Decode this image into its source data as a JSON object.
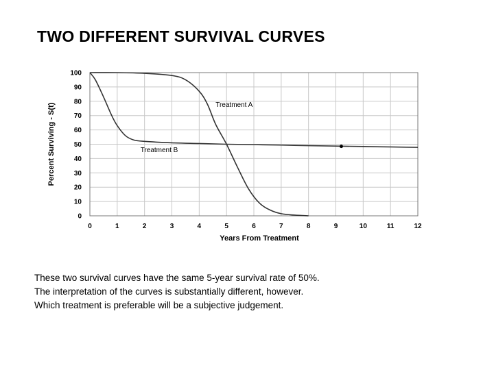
{
  "title": "TWO DIFFERENT SURVIVAL CURVES",
  "chart_data": {
    "type": "line",
    "title": "",
    "xlabel": "Years From Treatment",
    "ylabel": "Percent Surviving - S(t)",
    "xlim": [
      0,
      12
    ],
    "ylim": [
      0,
      100
    ],
    "xticks": [
      "0",
      "1",
      "2",
      "3",
      "4",
      "5",
      "6",
      "7",
      "8",
      "9",
      "10",
      "11",
      "12"
    ],
    "yticks": [
      "0",
      "10",
      "20",
      "30",
      "40",
      "50",
      "60",
      "70",
      "80",
      "90",
      "100"
    ],
    "grid": true,
    "legend": "none",
    "series": [
      {
        "name": "Treatment A",
        "x": [
          0,
          1,
          2,
          3,
          3.5,
          4,
          4.3,
          4.6,
          5,
          5.4,
          5.8,
          6.2,
          6.6,
          7,
          7.5,
          8
        ],
        "y": [
          100,
          100,
          99.5,
          98,
          95,
          87,
          78,
          64,
          50,
          34,
          19,
          9,
          4,
          1.5,
          0.5,
          0
        ]
      },
      {
        "name": "Treatment B",
        "x": [
          0,
          0.2,
          0.5,
          0.8,
          1,
          1.3,
          1.6,
          2,
          3,
          4,
          5,
          6,
          7,
          8,
          9,
          10,
          11,
          12
        ],
        "y": [
          100,
          95,
          83,
          70,
          63,
          56,
          53,
          52,
          51,
          50.5,
          50,
          49.7,
          49.4,
          49,
          48.7,
          48.4,
          48.1,
          47.8
        ]
      }
    ],
    "annotations": [
      {
        "text": "Treatment A",
        "x": 4.6,
        "y": 76
      },
      {
        "text": "Treatment B",
        "x": 1.85,
        "y": 44.5
      }
    ],
    "markers": [
      {
        "x": 9.2,
        "y": 48.5
      }
    ]
  },
  "notes": [
    "These two survival curves have the same 5-year survival rate of 50%.",
    "The interpretation of the curves is substantially different, however.",
    "Which treatment is preferable will be a subjective judgement."
  ]
}
